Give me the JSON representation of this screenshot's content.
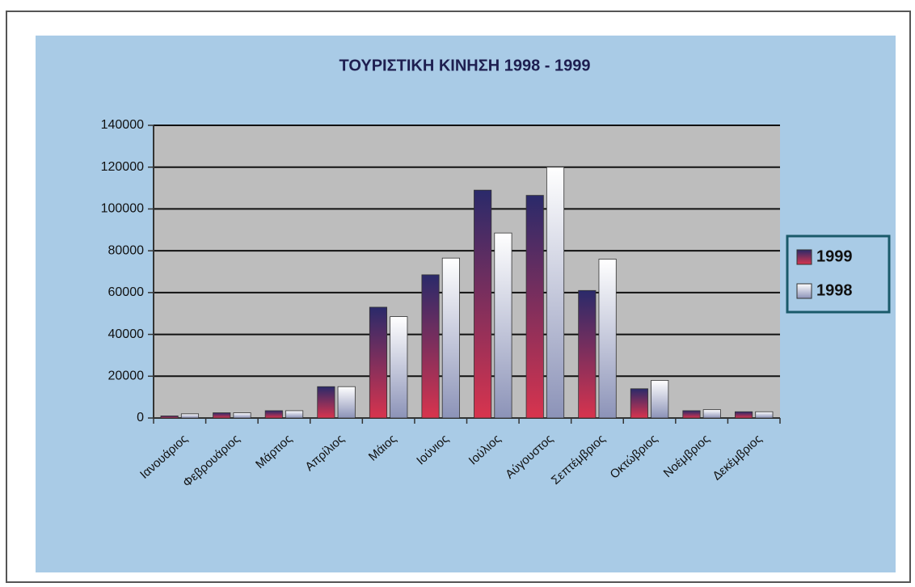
{
  "chart_data": {
    "type": "bar",
    "title": "ΤΟΥΡΙΣΤΙΚΗ ΚΙΝΗΣΗ 1998 - 1999",
    "categories": [
      "Ιανουάριος",
      "Φεβρουάριος",
      "Μάρτιος",
      "Απρίλιος",
      "Μάιος",
      "Ιούνιος",
      "Ιούλιος",
      "Αύγουστος",
      "Σεπτέμβριος",
      "Οκτώβριος",
      "Νοέμβριος",
      "Δεκέμβριος"
    ],
    "series": [
      {
        "name": "1999",
        "color": "#d8344e",
        "values": [
          1000,
          2500,
          3500,
          15000,
          53000,
          68500,
          109000,
          106500,
          61000,
          14000,
          3500,
          3000
        ]
      },
      {
        "name": "1998",
        "color": "#ffffff",
        "values": [
          2000,
          2500,
          3500,
          15000,
          48500,
          76500,
          88500,
          120000,
          76000,
          18000,
          4000,
          3000
        ]
      }
    ],
    "ylim": [
      0,
      140000
    ],
    "yticks": [
      0,
      20000,
      40000,
      60000,
      80000,
      100000,
      120000,
      140000
    ],
    "grid": true,
    "legend": "right"
  }
}
